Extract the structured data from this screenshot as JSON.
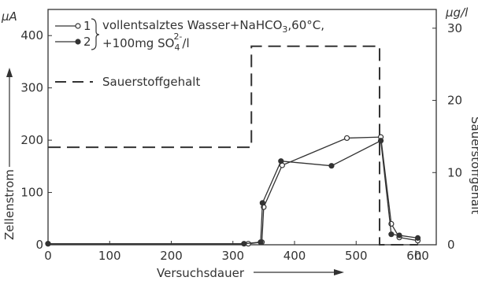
{
  "chart_data": {
    "type": "line",
    "xlabel": "Versuchsdauer",
    "xunit": "h",
    "ylabel": "Zellenstrom",
    "yunit": "µA",
    "y2label": "Sauerstoffgehalt",
    "y2unit": "µg/l",
    "xlim": [
      0,
      630
    ],
    "ylim": [
      0,
      450
    ],
    "y2lim": [
      0,
      32.6
    ],
    "xticks": [
      "0",
      "100",
      "200",
      "300",
      "400",
      "500",
      "600"
    ],
    "yticks": [
      "0",
      "100",
      "200",
      "300",
      "400"
    ],
    "y2ticks": [
      "0",
      "10",
      "20",
      "30"
    ],
    "legend": {
      "series1_num": "1",
      "series2_num": "2",
      "line1": "vollentsalztes Wasser+NaHCO",
      "line1_sub": "3",
      "line1_end": ",60°C,",
      "line2": "+100mg SO",
      "line2_sub": "4",
      "line2_sup": "2-",
      "line2_end": "/l",
      "oxygen": "Sauerstoffgehalt",
      "placement": "top-left"
    },
    "series": [
      {
        "name": "1",
        "marker": "open-circle",
        "x": [
          0,
          325,
          347,
          350,
          380,
          485,
          540,
          557,
          570,
          600
        ],
        "y": [
          2,
          2,
          5,
          72,
          152,
          204,
          206,
          40,
          14,
          8
        ]
      },
      {
        "name": "2",
        "marker": "filled-circle",
        "x": [
          0,
          318,
          345,
          348,
          378,
          460,
          540,
          557,
          570,
          600
        ],
        "y": [
          2,
          2,
          5,
          80,
          160,
          151,
          199,
          20,
          18,
          13
        ]
      }
    ],
    "oxygen_content": {
      "style": "dashed",
      "axis": "right",
      "x": [
        0,
        330,
        330,
        538,
        538,
        600
      ],
      "y": [
        13.5,
        13.5,
        27.5,
        27.5,
        0,
        0
      ]
    }
  }
}
